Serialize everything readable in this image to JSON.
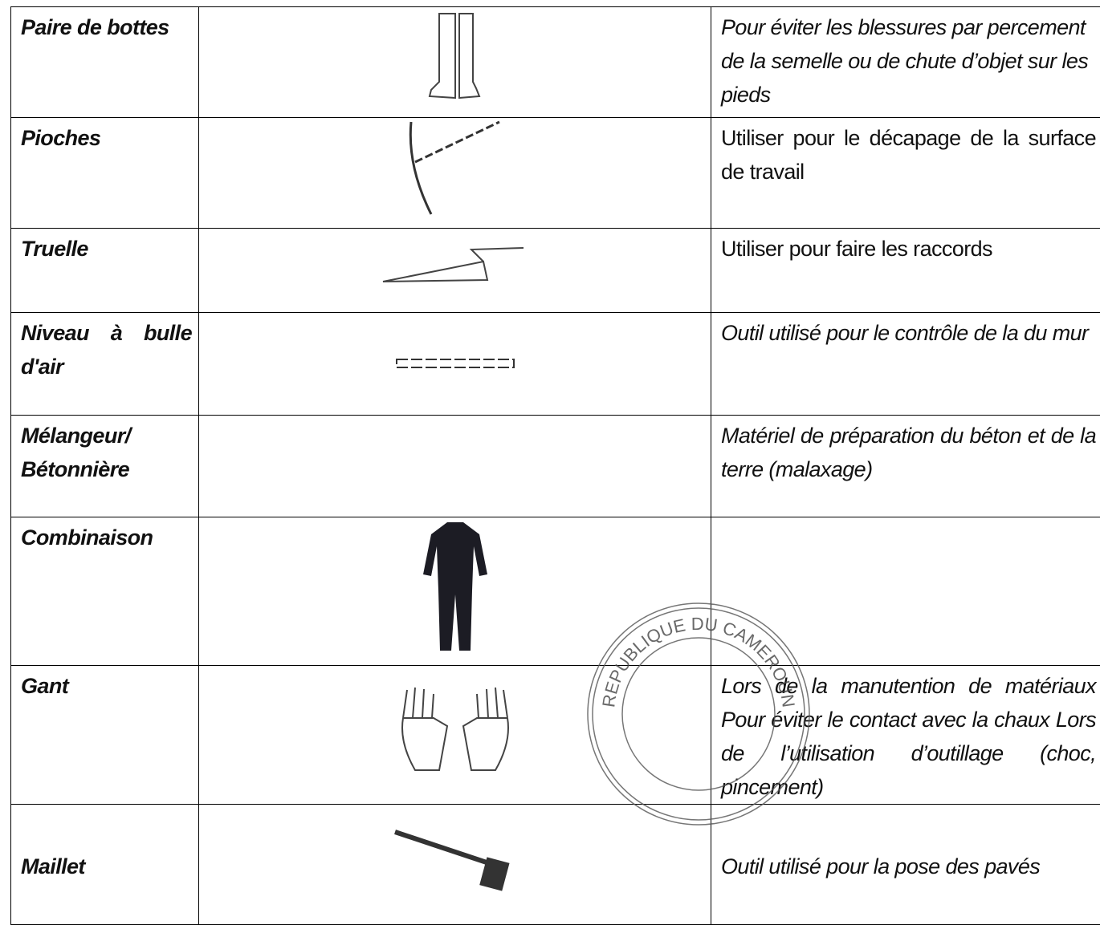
{
  "table": {
    "rows": [
      {
        "item": "Paire de bottes",
        "description": "Pour éviter les blessures par percement de la semelle ou de chute d’objet sur les pieds"
      },
      {
        "item": "Pioches",
        "description": "Utiliser pour le décapage de la surface de travail"
      },
      {
        "item": "Truelle",
        "description": "Utiliser pour faire les raccords"
      },
      {
        "item": "Niveau à bulle d'air",
        "description": "Outil utilisé pour le contrôle de la du mur"
      },
      {
        "item": "Mélangeur/ Bétonnière",
        "description": "Matériel de préparation du béton et de la terre (malaxage)"
      },
      {
        "item": "Combinaison"
      },
      {
        "item": "Gant",
        "description": "Lors de la manutention de matériaux Pour éviter le contact avec la chaux Lors de l’utilisation d’outillage (choc, pincement)"
      },
      {
        "item": "Maillet",
        "description": "Outil utilisé pour la pose des pavés"
      }
    ]
  },
  "stamp": {
    "text": "REPUBLIQUE DU CAMEROUN"
  }
}
